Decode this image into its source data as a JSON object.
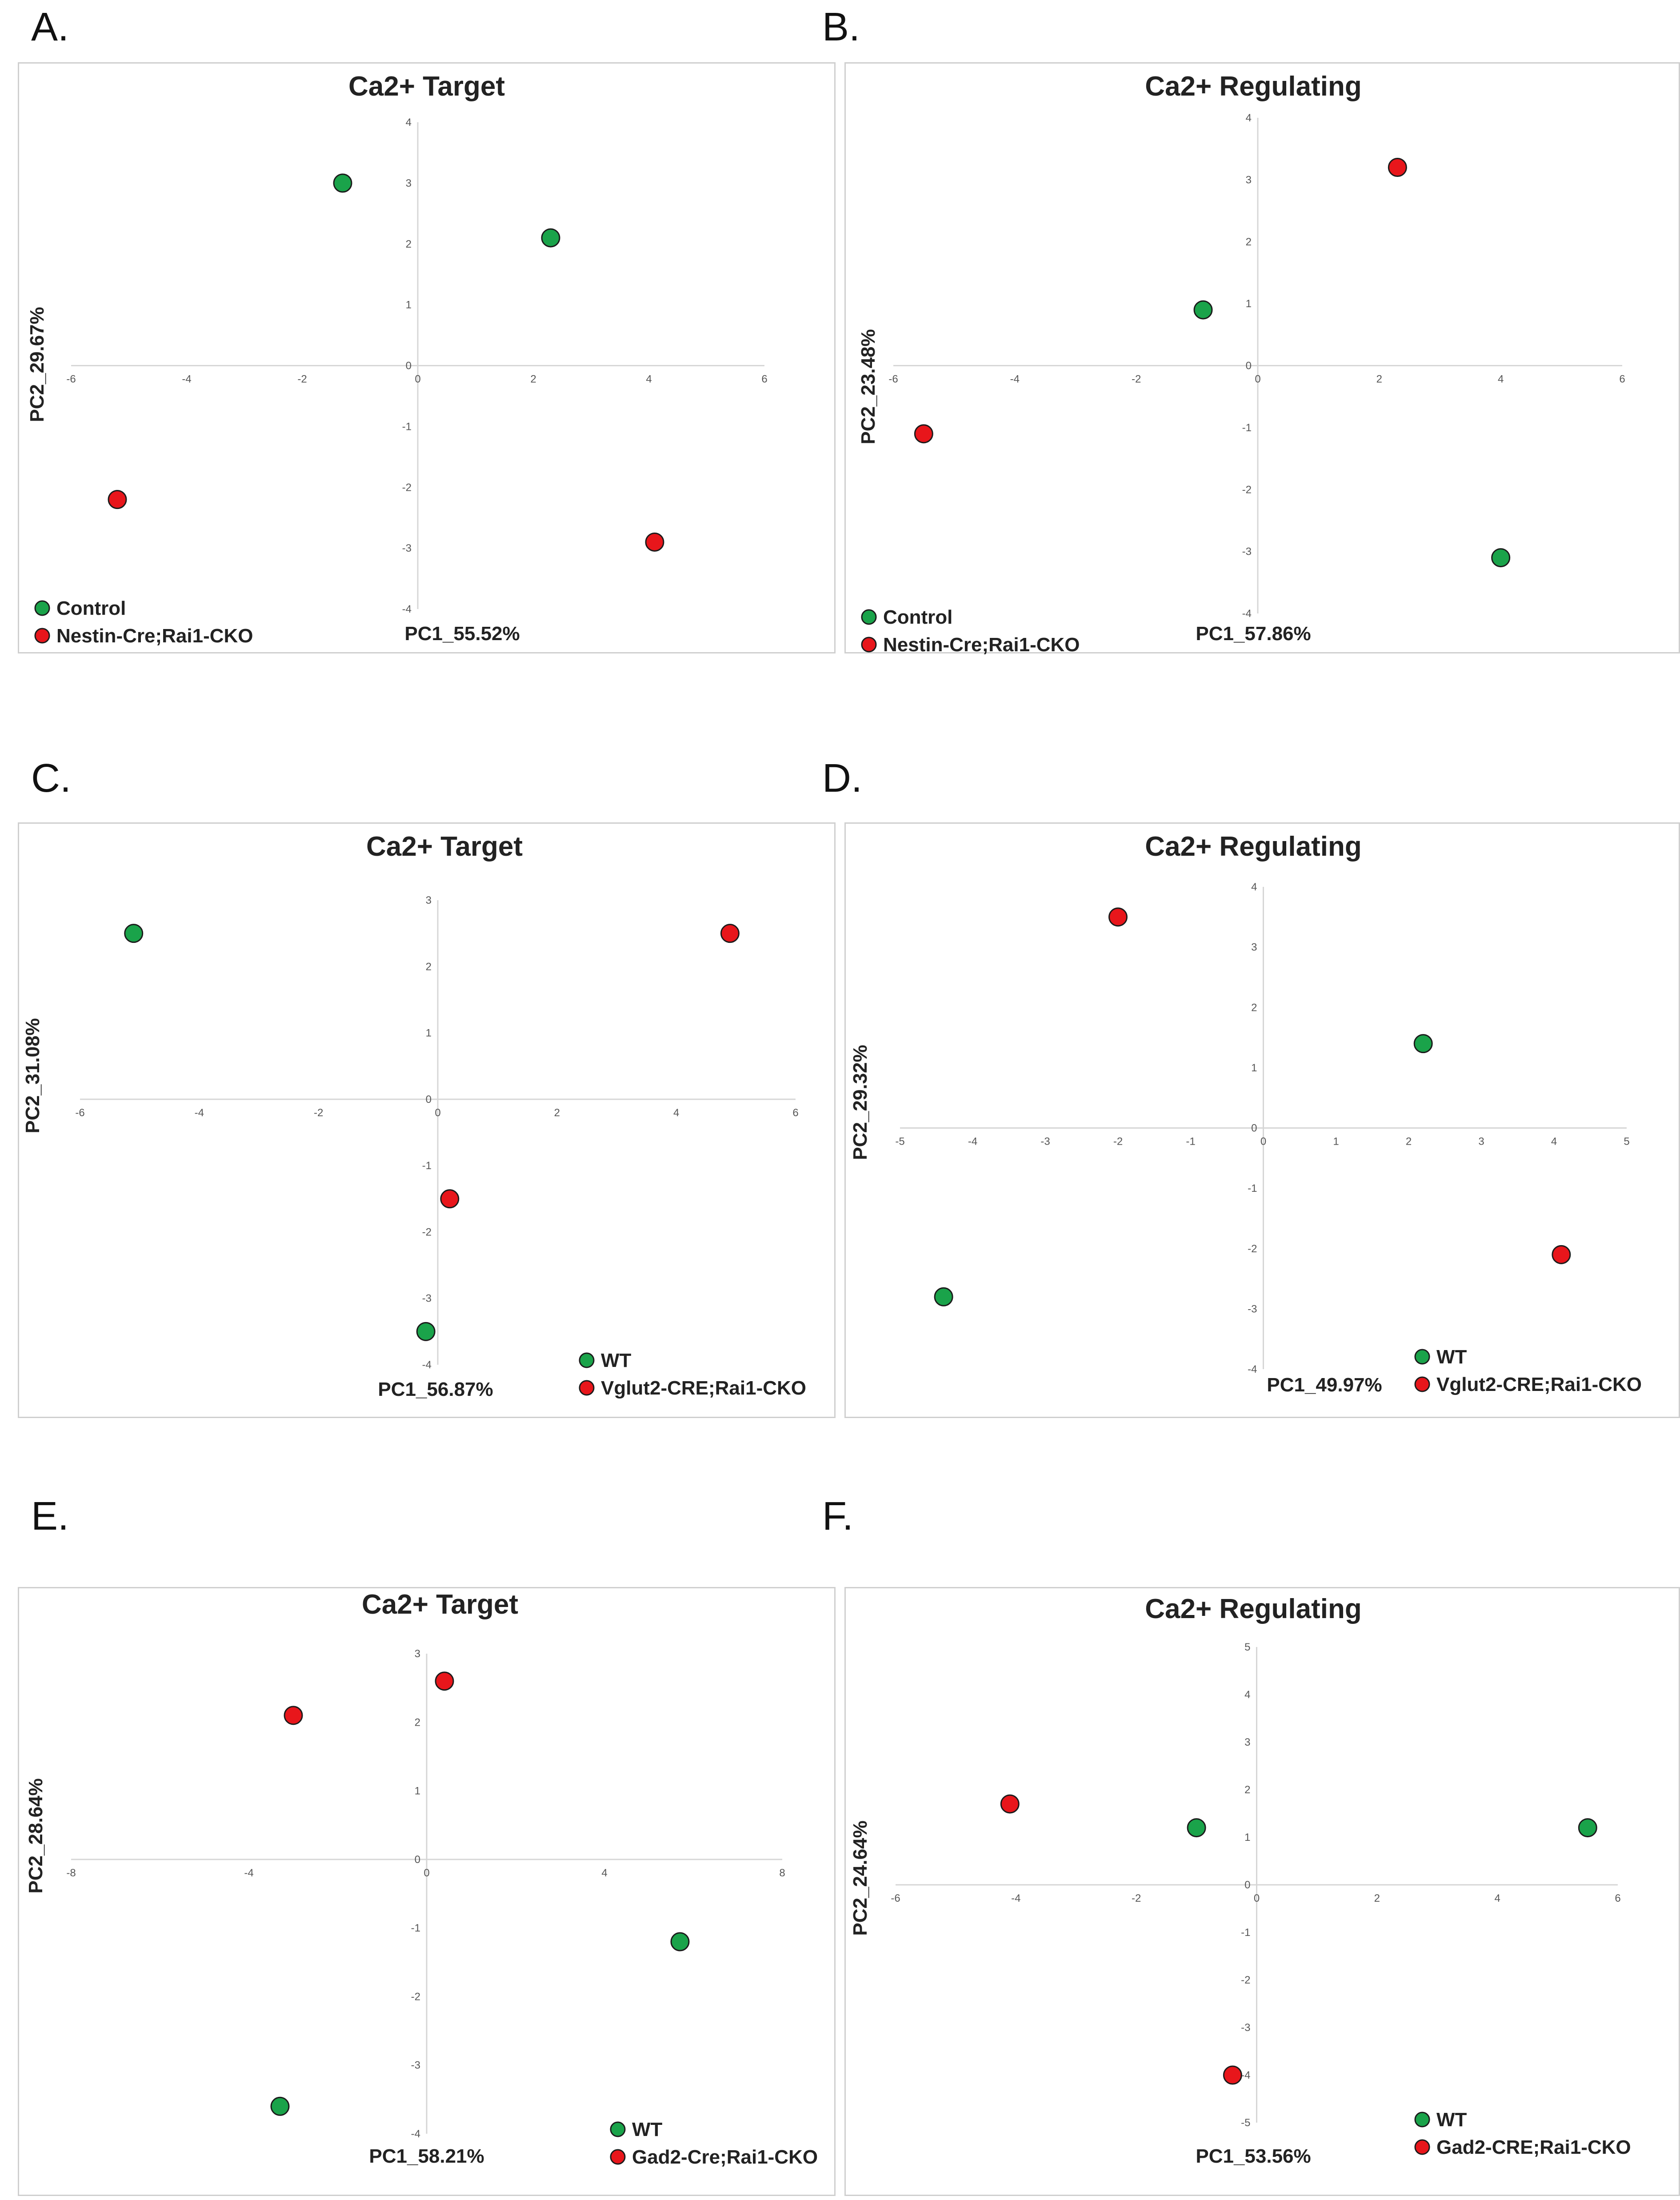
{
  "colors": {
    "control": "#1aa34a",
    "cko": "#e8161b",
    "axis": "#d6d6d6",
    "border": "#cfcfcf"
  },
  "chart_data": [
    {
      "panel": "A.",
      "type": "scatter",
      "title": "Ca2+ Target",
      "xlabel": "PC1_55.52%",
      "ylabel": "PC2_29.67%",
      "xlim": [
        -6,
        6
      ],
      "ylim": [
        -4,
        4
      ],
      "xticks": [
        -6,
        -4,
        -2,
        0,
        2,
        4,
        6
      ],
      "yticks": [
        -4,
        -3,
        -2,
        -1,
        0,
        1,
        2,
        3,
        4
      ],
      "legend_position": "bottom-left",
      "series": [
        {
          "name": "Control",
          "color": "#1aa34a",
          "points": [
            [
              -1.3,
              3.0
            ],
            [
              2.3,
              2.1
            ]
          ]
        },
        {
          "name": "Nestin-Cre;Rai1-CKO",
          "color": "#e8161b",
          "points": [
            [
              -5.2,
              -2.2
            ],
            [
              4.1,
              -2.9
            ]
          ]
        }
      ]
    },
    {
      "panel": "B.",
      "type": "scatter",
      "title": "Ca2+ Regulating",
      "xlabel": "PC1_57.86%",
      "ylabel": "PC2_23.48%",
      "xlim": [
        -6,
        6
      ],
      "ylim": [
        -4,
        4
      ],
      "xticks": [
        -6,
        -4,
        -2,
        0,
        2,
        4,
        6
      ],
      "yticks": [
        -4,
        -3,
        -2,
        -1,
        0,
        1,
        2,
        3,
        4
      ],
      "legend_position": "bottom-left",
      "series": [
        {
          "name": "Control",
          "color": "#1aa34a",
          "points": [
            [
              -0.9,
              0.9
            ],
            [
              4.0,
              -3.1
            ]
          ]
        },
        {
          "name": "Nestin-Cre;Rai1-CKO",
          "color": "#e8161b",
          "points": [
            [
              -5.5,
              -1.1
            ],
            [
              2.3,
              3.2
            ]
          ]
        }
      ]
    },
    {
      "panel": "C.",
      "type": "scatter",
      "title": "Ca2+ Target",
      "xlabel": "PC1_56.87%",
      "ylabel": "PC2_31.08%",
      "xlim": [
        -6,
        6
      ],
      "ylim": [
        -4,
        3
      ],
      "xticks": [
        -6,
        -4,
        -2,
        0,
        2,
        4,
        6
      ],
      "yticks": [
        -4,
        -3,
        -2,
        -1,
        0,
        1,
        2,
        3
      ],
      "legend_position": "bottom-right",
      "series": [
        {
          "name": "WT",
          "color": "#1aa34a",
          "points": [
            [
              -5.1,
              2.5
            ],
            [
              -0.2,
              -3.5
            ]
          ]
        },
        {
          "name": "Vglut2-CRE;Rai1-CKO",
          "color": "#e8161b",
          "points": [
            [
              4.9,
              2.5
            ],
            [
              0.2,
              -1.5
            ]
          ]
        }
      ]
    },
    {
      "panel": "D.",
      "type": "scatter",
      "title": "Ca2+ Regulating",
      "xlabel": "PC1_49.97%",
      "ylabel": "PC2_29.32%",
      "xlim": [
        -5,
        5
      ],
      "ylim": [
        -4,
        4
      ],
      "xticks": [
        -5,
        -4,
        -3,
        -2,
        -1,
        0,
        1,
        2,
        3,
        4,
        5
      ],
      "yticks": [
        -4,
        -3,
        -2,
        -1,
        0,
        1,
        2,
        3,
        4
      ],
      "legend_position": "bottom-right",
      "series": [
        {
          "name": "WT",
          "color": "#1aa34a",
          "points": [
            [
              2.2,
              1.4
            ],
            [
              -4.4,
              -2.8
            ]
          ]
        },
        {
          "name": "Vglut2-CRE;Rai1-CKO",
          "color": "#e8161b",
          "points": [
            [
              -2.0,
              3.5
            ],
            [
              4.1,
              -2.1
            ]
          ]
        }
      ]
    },
    {
      "panel": "E.",
      "type": "scatter",
      "title": "Ca2+ Target",
      "xlabel": "PC1_58.21%",
      "ylabel": "PC2_28.64%",
      "xlim": [
        -8,
        8
      ],
      "ylim": [
        -4,
        3
      ],
      "xticks": [
        -8,
        -4,
        0,
        4,
        8
      ],
      "yticks": [
        -4,
        -3,
        -2,
        -1,
        0,
        1,
        2,
        3
      ],
      "legend_position": "bottom-right",
      "series": [
        {
          "name": "WT",
          "color": "#1aa34a",
          "points": [
            [
              5.7,
              -1.2
            ],
            [
              -3.3,
              -3.6
            ]
          ]
        },
        {
          "name": "Gad2-Cre;Rai1-CKO",
          "color": "#e8161b",
          "points": [
            [
              -3.0,
              2.1
            ],
            [
              0.4,
              2.6
            ]
          ]
        }
      ]
    },
    {
      "panel": "F.",
      "type": "scatter",
      "title": "Ca2+ Regulating",
      "xlabel": "PC1_53.56%",
      "ylabel": "PC2_24.64%",
      "xlim": [
        -6,
        6
      ],
      "ylim": [
        -5,
        5
      ],
      "xticks": [
        -6,
        -4,
        -2,
        0,
        2,
        4,
        6
      ],
      "yticks": [
        -5,
        -4,
        -3,
        -2,
        -1,
        0,
        1,
        2,
        3,
        4,
        5
      ],
      "legend_position": "bottom-right",
      "series": [
        {
          "name": "WT",
          "color": "#1aa34a",
          "points": [
            [
              -1.0,
              1.2
            ],
            [
              5.5,
              1.2
            ]
          ]
        },
        {
          "name": "Gad2-CRE;Rai1-CKO",
          "color": "#e8161b",
          "points": [
            [
              -4.1,
              1.7
            ],
            [
              -0.4,
              -4.0
            ]
          ]
        }
      ]
    }
  ]
}
